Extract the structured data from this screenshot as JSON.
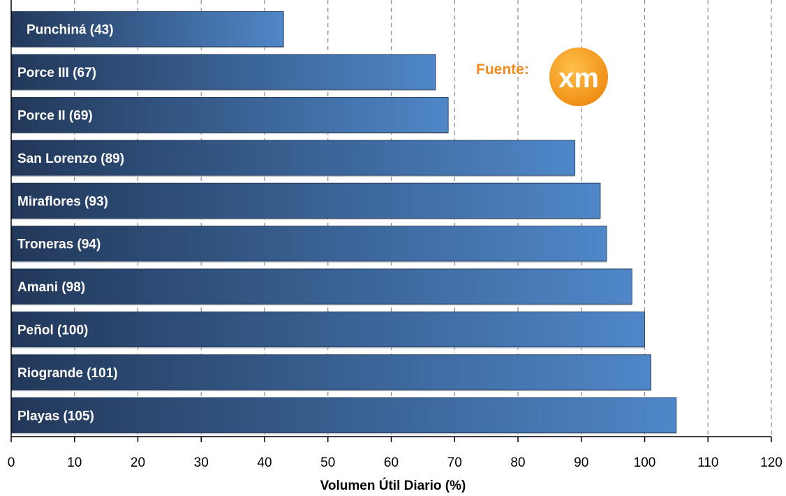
{
  "chart_data": {
    "type": "bar",
    "orientation": "horizontal",
    "categories": [
      "Punchiná",
      "Porce III",
      "Porce II",
      "San Lorenzo",
      "Miraflores",
      "Troneras",
      "Amani",
      "Peñol",
      "Riogrande",
      "Playas"
    ],
    "values": [
      43,
      67,
      69,
      89,
      93,
      94,
      98,
      100,
      101,
      105
    ],
    "bar_labels": [
      "Punchiná (43)",
      "Porce III (67)",
      "Porce II (69)",
      "San Lorenzo (89)",
      "Miraflores (93)",
      "Troneras (94)",
      "Amani (98)",
      "Peñol (100)",
      "Riogrande (101)",
      "Playas (105)"
    ],
    "xlabel": "Volumen Útil Diario (%)",
    "xlim": [
      0,
      120
    ],
    "xticks": [
      0,
      10,
      20,
      30,
      40,
      50,
      60,
      70,
      80,
      90,
      100,
      110,
      120
    ],
    "grid": "vertical dashed",
    "bar_color_dark": "#23395b",
    "bar_color_light": "#4f86c6"
  },
  "source": {
    "label": "Fuente:",
    "logo_text": "xm",
    "logo_color": "#f39a1e"
  }
}
